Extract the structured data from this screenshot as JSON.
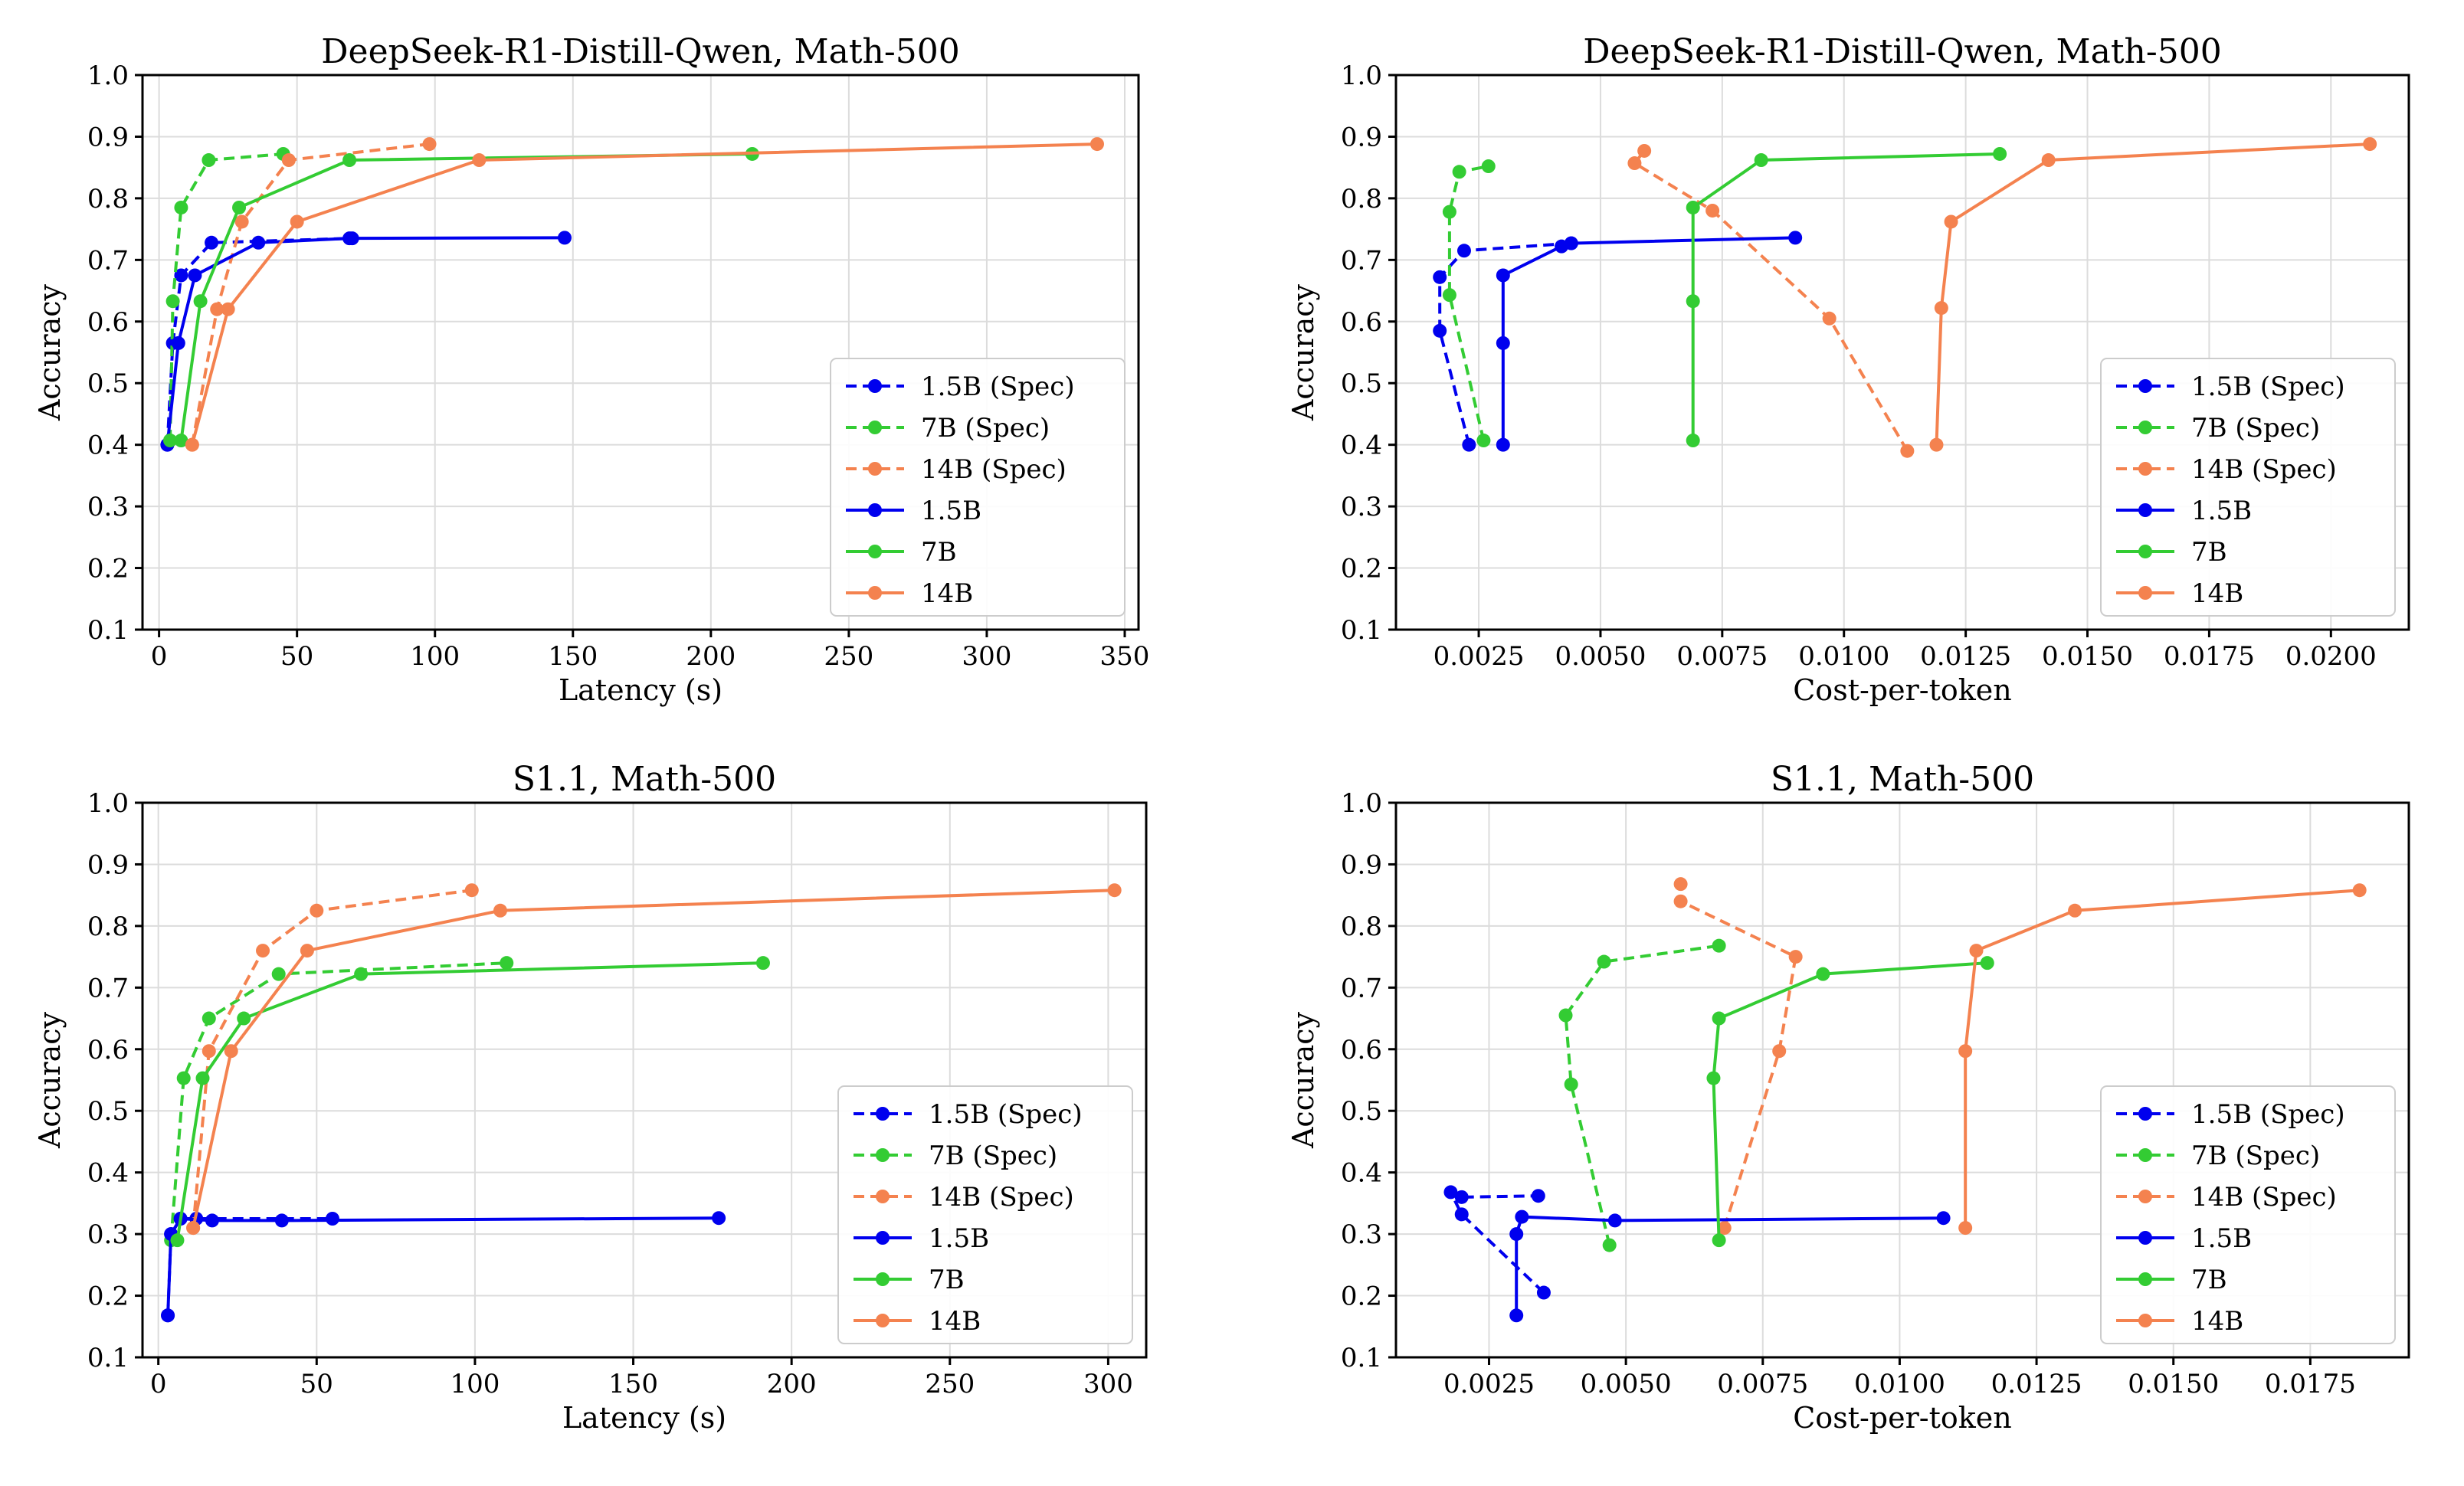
{
  "colors": {
    "1.5B": "#0000ee",
    "7B": "#33cc33",
    "14B": "#f4824f"
  },
  "chart_data": [
    {
      "type": "line",
      "title": "DeepSeek-R1-Distill-Qwen, Math-500",
      "xlabel": "Latency (s)",
      "ylabel": "Accuracy",
      "xlim": [
        -6,
        355
      ],
      "ylim": [
        0.1,
        1.0
      ],
      "xticks": [
        0,
        50,
        100,
        150,
        200,
        250,
        300,
        350
      ],
      "xtick_labels": [
        "0",
        "50",
        "100",
        "150",
        "200",
        "250",
        "300",
        "350"
      ],
      "yticks": [
        0.1,
        0.2,
        0.3,
        0.4,
        0.5,
        0.6,
        0.7,
        0.8,
        0.9,
        1.0
      ],
      "ytick_labels": [
        "0.1",
        "0.2",
        "0.3",
        "0.4",
        "0.5",
        "0.6",
        "0.7",
        "0.8",
        "0.9",
        "1.0"
      ],
      "grid": true,
      "legend": "lower-right",
      "series": [
        {
          "name": "1.5B (Spec)",
          "model": "1.5B",
          "style": "dashed",
          "x": [
            3,
            5,
            8,
            19,
            70
          ],
          "y": [
            0.4,
            0.565,
            0.675,
            0.728,
            0.735
          ]
        },
        {
          "name": "7B (Spec)",
          "model": "7B",
          "style": "dashed",
          "x": [
            4,
            5,
            8,
            18,
            45
          ],
          "y": [
            0.407,
            0.633,
            0.785,
            0.862,
            0.872
          ]
        },
        {
          "name": "14B (Spec)",
          "model": "14B",
          "style": "dashed",
          "x": [
            12,
            21,
            30,
            47,
            98
          ],
          "y": [
            0.4,
            0.62,
            0.762,
            0.862,
            0.888
          ]
        },
        {
          "name": "1.5B",
          "model": "1.5B",
          "style": "solid",
          "x": [
            3,
            7,
            13,
            36,
            69,
            147
          ],
          "y": [
            0.4,
            0.565,
            0.675,
            0.728,
            0.735,
            0.736
          ]
        },
        {
          "name": "7B",
          "model": "7B",
          "style": "solid",
          "x": [
            4,
            8,
            15,
            29,
            69,
            215
          ],
          "y": [
            0.407,
            0.407,
            0.633,
            0.785,
            0.862,
            0.872
          ]
        },
        {
          "name": "14B",
          "model": "14B",
          "style": "solid",
          "x": [
            12,
            25,
            50,
            116,
            340
          ],
          "y": [
            0.4,
            0.62,
            0.762,
            0.862,
            0.888
          ]
        }
      ]
    },
    {
      "type": "line",
      "title": "DeepSeek-R1-Distill-Qwen, Math-500",
      "xlabel": "Cost-per-token",
      "ylabel": "Accuracy",
      "xlim": [
        0.0008,
        0.0216
      ],
      "ylim": [
        0.1,
        1.0
      ],
      "xticks": [
        0.0025,
        0.005,
        0.0075,
        0.01,
        0.0125,
        0.015,
        0.0175,
        0.02
      ],
      "xtick_labels": [
        "0.0025",
        "0.0050",
        "0.0075",
        "0.0100",
        "0.0125",
        "0.0150",
        "0.0175",
        "0.0200"
      ],
      "yticks": [
        0.1,
        0.2,
        0.3,
        0.4,
        0.5,
        0.6,
        0.7,
        0.8,
        0.9,
        1.0
      ],
      "ytick_labels": [
        "0.1",
        "0.2",
        "0.3",
        "0.4",
        "0.5",
        "0.6",
        "0.7",
        "0.8",
        "0.9",
        "1.0"
      ],
      "grid": true,
      "legend": "lower-right",
      "series": [
        {
          "name": "1.5B (Spec)",
          "model": "1.5B",
          "style": "dashed",
          "x": [
            0.0023,
            0.0017,
            0.0017,
            0.0022,
            0.0044
          ],
          "y": [
            0.4,
            0.585,
            0.672,
            0.715,
            0.727
          ]
        },
        {
          "name": "7B (Spec)",
          "model": "7B",
          "style": "dashed",
          "x": [
            0.0026,
            0.0019,
            0.0019,
            0.0021,
            0.0027
          ],
          "y": [
            0.407,
            0.643,
            0.778,
            0.843,
            0.852
          ]
        },
        {
          "name": "14B (Spec)",
          "model": "14B",
          "style": "dashed",
          "x": [
            0.0113,
            0.0097,
            0.0073,
            0.0057,
            0.0059
          ],
          "y": [
            0.39,
            0.605,
            0.78,
            0.857,
            0.877
          ]
        },
        {
          "name": "1.5B",
          "model": "1.5B",
          "style": "solid",
          "x": [
            0.003,
            0.003,
            0.003,
            0.0042,
            0.0044,
            0.009
          ],
          "y": [
            0.4,
            0.565,
            0.675,
            0.722,
            0.727,
            0.736
          ]
        },
        {
          "name": "7B",
          "model": "7B",
          "style": "solid",
          "x": [
            0.0069,
            0.0069,
            0.0069,
            0.0083,
            0.0132
          ],
          "y": [
            0.407,
            0.633,
            0.785,
            0.862,
            0.872
          ]
        },
        {
          "name": "14B",
          "model": "14B",
          "style": "solid",
          "x": [
            0.0119,
            0.012,
            0.0122,
            0.0142,
            0.0208
          ],
          "y": [
            0.4,
            0.622,
            0.762,
            0.862,
            0.888
          ]
        }
      ]
    },
    {
      "type": "line",
      "title": "S1.1, Math-500",
      "xlabel": "Latency (s)",
      "ylabel": "Accuracy",
      "xlim": [
        -5,
        312
      ],
      "ylim": [
        0.1,
        1.0
      ],
      "xticks": [
        0,
        50,
        100,
        150,
        200,
        250,
        300
      ],
      "xtick_labels": [
        "0",
        "50",
        "100",
        "150",
        "200",
        "250",
        "300"
      ],
      "yticks": [
        0.1,
        0.2,
        0.3,
        0.4,
        0.5,
        0.6,
        0.7,
        0.8,
        0.9,
        1.0
      ],
      "ytick_labels": [
        "0.1",
        "0.2",
        "0.3",
        "0.4",
        "0.5",
        "0.6",
        "0.7",
        "0.8",
        "0.9",
        "1.0"
      ],
      "grid": true,
      "legend": "lower-right",
      "series": [
        {
          "name": "1.5B (Spec)",
          "model": "1.5B",
          "style": "dashed",
          "x": [
            3,
            4,
            7,
            12,
            55
          ],
          "y": [
            0.168,
            0.3,
            0.325,
            0.325,
            0.325
          ]
        },
        {
          "name": "7B (Spec)",
          "model": "7B",
          "style": "dashed",
          "x": [
            4,
            8,
            16,
            38,
            110
          ],
          "y": [
            0.29,
            0.553,
            0.65,
            0.722,
            0.74
          ]
        },
        {
          "name": "14B (Spec)",
          "model": "14B",
          "style": "dashed",
          "x": [
            11,
            16,
            33,
            50,
            99
          ],
          "y": [
            0.31,
            0.597,
            0.76,
            0.825,
            0.858
          ]
        },
        {
          "name": "1.5B",
          "model": "1.5B",
          "style": "solid",
          "x": [
            3,
            4,
            7,
            17,
            39,
            177
          ],
          "y": [
            0.168,
            0.3,
            0.325,
            0.322,
            0.322,
            0.326
          ]
        },
        {
          "name": "7B",
          "model": "7B",
          "style": "solid",
          "x": [
            6,
            14,
            27,
            64,
            191
          ],
          "y": [
            0.29,
            0.553,
            0.65,
            0.722,
            0.74
          ]
        },
        {
          "name": "14B",
          "model": "14B",
          "style": "solid",
          "x": [
            11,
            23,
            47,
            108,
            302
          ],
          "y": [
            0.31,
            0.597,
            0.76,
            0.825,
            0.858
          ]
        }
      ]
    },
    {
      "type": "line",
      "title": "S1.1, Math-500",
      "xlabel": "Cost-per-token",
      "ylabel": "Accuracy",
      "xlim": [
        0.0008,
        0.0193
      ],
      "ylim": [
        0.1,
        1.0
      ],
      "xticks": [
        0.0025,
        0.005,
        0.0075,
        0.01,
        0.0125,
        0.015,
        0.0175
      ],
      "xtick_labels": [
        "0.0025",
        "0.0050",
        "0.0075",
        "0.0100",
        "0.0125",
        "0.0150",
        "0.0175"
      ],
      "yticks": [
        0.1,
        0.2,
        0.3,
        0.4,
        0.5,
        0.6,
        0.7,
        0.8,
        0.9,
        1.0
      ],
      "ytick_labels": [
        "0.1",
        "0.2",
        "0.3",
        "0.4",
        "0.5",
        "0.6",
        "0.7",
        "0.8",
        "0.9",
        "1.0"
      ],
      "grid": true,
      "legend": "lower-right",
      "series": [
        {
          "name": "1.5B (Spec)",
          "model": "1.5B",
          "style": "dashed",
          "x": [
            0.0035,
            0.002,
            0.0018,
            0.002,
            0.0034
          ],
          "y": [
            0.205,
            0.332,
            0.368,
            0.36,
            0.362
          ]
        },
        {
          "name": "7B (Spec)",
          "model": "7B",
          "style": "dashed",
          "x": [
            0.0047,
            0.004,
            0.0039,
            0.0046,
            0.0067
          ],
          "y": [
            0.282,
            0.543,
            0.655,
            0.742,
            0.768
          ]
        },
        {
          "name": "14B (Spec)",
          "model": "14B",
          "style": "dashed",
          "x": [
            0.0068,
            0.0078,
            0.0081,
            0.006,
            0.006
          ],
          "y": [
            0.31,
            0.597,
            0.75,
            0.84,
            0.868
          ]
        },
        {
          "name": "1.5B",
          "model": "1.5B",
          "style": "solid",
          "x": [
            0.003,
            0.003,
            0.0031,
            0.0048,
            0.0108
          ],
          "y": [
            0.168,
            0.3,
            0.328,
            0.322,
            0.326
          ]
        },
        {
          "name": "7B",
          "model": "7B",
          "style": "solid",
          "x": [
            0.0067,
            0.0066,
            0.0067,
            0.0086,
            0.0116
          ],
          "y": [
            0.29,
            0.553,
            0.65,
            0.722,
            0.74
          ]
        },
        {
          "name": "14B",
          "model": "14B",
          "style": "solid",
          "x": [
            0.0112,
            0.0112,
            0.0114,
            0.0132,
            0.0184
          ],
          "y": [
            0.31,
            0.597,
            0.76,
            0.825,
            0.858
          ]
        }
      ]
    }
  ]
}
